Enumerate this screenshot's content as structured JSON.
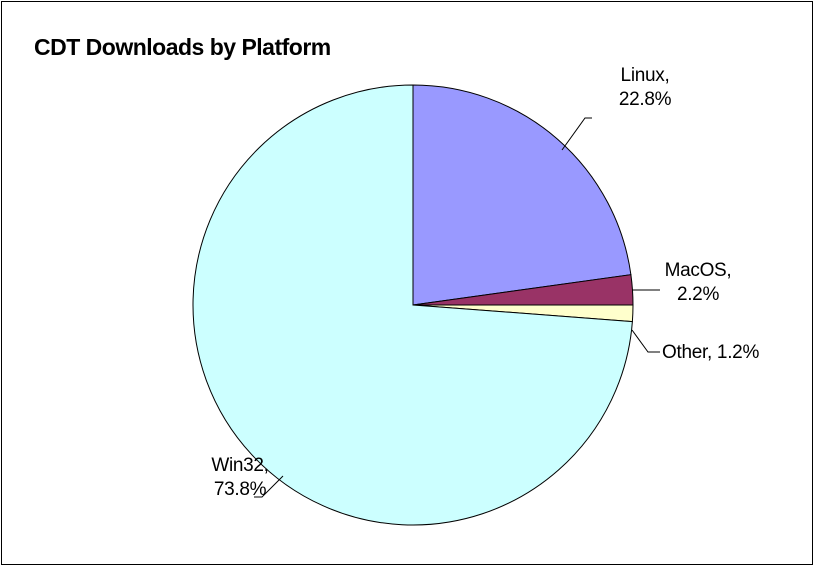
{
  "chart_data": {
    "type": "pie",
    "title": "CDT Downloads by Platform",
    "values": [
      22.8,
      2.2,
      1.2,
      73.8
    ],
    "value_labels": [
      "Linux, 22.8%",
      "MacOS, 2.2%",
      "Other, 1.2%",
      "Win32, 73.8%"
    ],
    "colors": [
      "#9999ff",
      "#993366",
      "#ffffcc",
      "#ccffff"
    ]
  }
}
